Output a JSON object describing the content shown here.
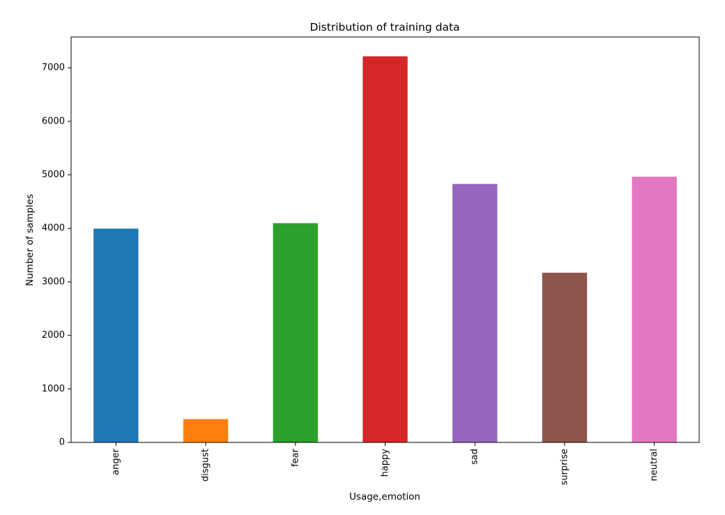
{
  "chart_data": {
    "type": "bar",
    "title": "Distribution of training data",
    "xlabel": "Usage,emotion",
    "ylabel": "Number of samples",
    "categories": [
      "anger",
      "disgust",
      "fear",
      "happy",
      "sad",
      "surprise",
      "neutral"
    ],
    "values": [
      3995,
      436,
      4097,
      7215,
      4830,
      3171,
      4965
    ],
    "colors": [
      "#1f77b4",
      "#ff7f0e",
      "#2ca02c",
      "#d62728",
      "#9467bd",
      "#8c564b",
      "#e377c2"
    ],
    "ylim": [
      0,
      7576
    ],
    "yticks": [
      0,
      1000,
      2000,
      3000,
      4000,
      5000,
      6000,
      7000
    ],
    "grid": false,
    "legend": "none"
  }
}
